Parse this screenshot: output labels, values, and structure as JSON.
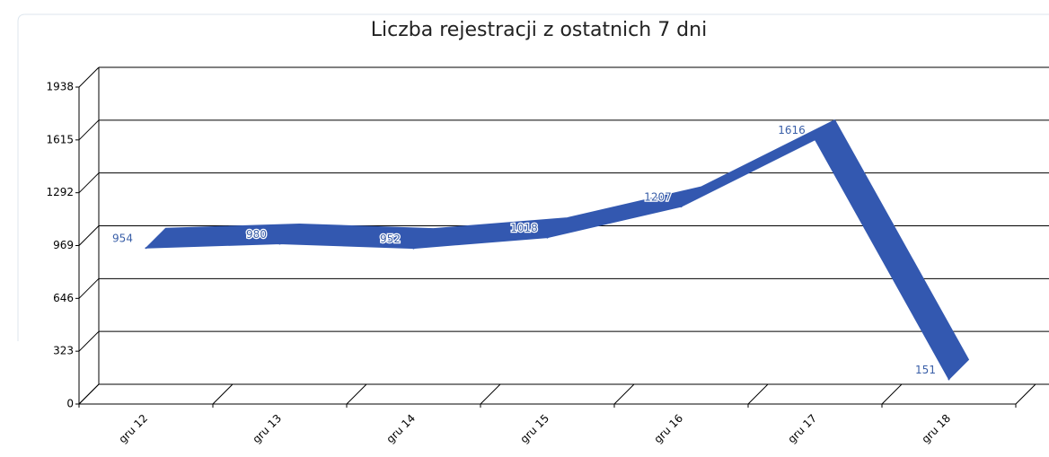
{
  "chart_data": {
    "type": "line3d",
    "title": "Liczba rejestracji z ostatnich 7 dni",
    "categories": [
      "gru 12",
      "gru 13",
      "gru 14",
      "gru 15",
      "gru 16",
      "gru 17",
      "gru 18"
    ],
    "values": [
      954,
      980,
      952,
      1018,
      1207,
      1616,
      151
    ],
    "color": "#3358b0",
    "ylim": [
      0,
      1938
    ],
    "yticks": [
      0,
      323,
      646,
      969,
      1292,
      1615,
      1938
    ],
    "grid": true
  }
}
